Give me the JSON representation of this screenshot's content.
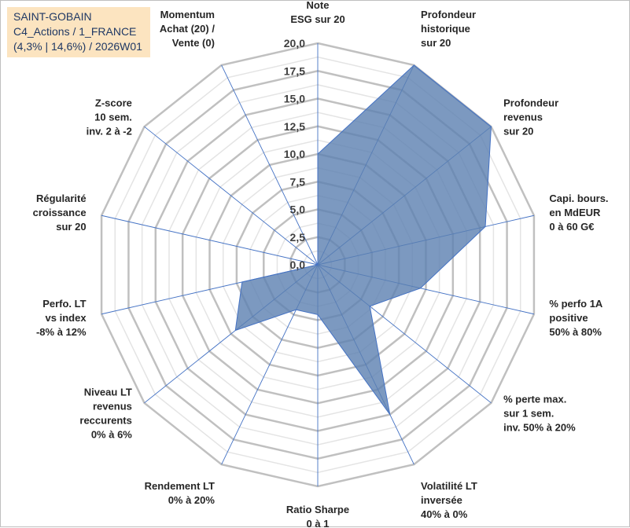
{
  "header": {
    "line1": "SAINT-GOBAIN",
    "line2": "C4_Actions / 1_FRANCE",
    "line3": "(4,3% | 14,6%) / 2026W01"
  },
  "colors": {
    "fill": "#5b7fb0",
    "outline": "#4472c4",
    "grid": "#c8c8c8",
    "title_bg": "#fce4c0",
    "title_text": "#1f3864"
  },
  "chart_data": {
    "type": "radar",
    "title": "SAINT-GOBAIN",
    "rmin": 0,
    "rmax": 20,
    "ticks": [
      "0,0",
      "2,5",
      "5,0",
      "7,5",
      "10,0",
      "12,5",
      "15,0",
      "17,5",
      "20,0"
    ],
    "categories": [
      [
        "Note",
        "ESG sur 20"
      ],
      [
        "Profondeur",
        "historique",
        "sur 20"
      ],
      [
        "Profondeur",
        "revenus",
        "sur 20"
      ],
      [
        "Capi. bours.",
        "en MdEUR",
        "0 à 60 G€"
      ],
      [
        "% perfo 1A",
        "positive",
        "50% à 80%"
      ],
      [
        "% perte max.",
        "sur 1 sem.",
        "inv. 50% à 20%"
      ],
      [
        "Volatilité LT",
        "inversée",
        "40% à 0%"
      ],
      [
        "Ratio Sharpe",
        "0 à 1"
      ],
      [
        "Rendement LT",
        "0% à 20%"
      ],
      [
        "Niveau LT",
        "revenus",
        "reccurents",
        "0% à 6%"
      ],
      [
        "Perfo. LT",
        "vs index",
        "-8% à 12%"
      ],
      [
        "Régularité",
        "croissance",
        "sur 20"
      ],
      [
        "Z-score",
        "10 sem.",
        "inv. 2 à -2"
      ],
      [
        "Momentum",
        "Achat (20) /",
        "Vente (0)"
      ]
    ],
    "series": [
      {
        "name": "SAINT-GOBAIN",
        "values": [
          10,
          20,
          20,
          15.5,
          9.5,
          6,
          15,
          4.5,
          4.5,
          9.5,
          7,
          0,
          0,
          0
        ]
      }
    ]
  }
}
